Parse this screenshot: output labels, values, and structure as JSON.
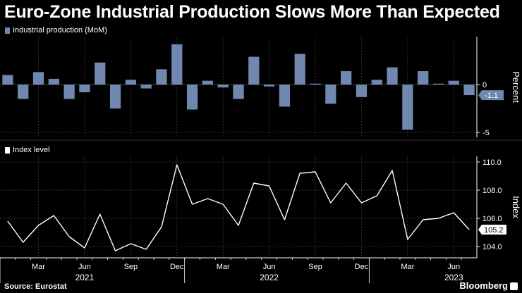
{
  "header": {
    "title": "Euro-Zone Industrial Production Slows More Than Expected"
  },
  "footer": {
    "source": "Source: Eurostat",
    "brand": "Bloomberg"
  },
  "colors": {
    "background": "#000000",
    "bar": "#7088b0",
    "line": "#ffffff",
    "grid": "#555555",
    "badge": "#7088b0"
  },
  "chart_data": [
    {
      "type": "bar",
      "legend": "Industrial production (MoM)",
      "ylabel": "Percent",
      "ylim": [
        -5.5,
        5
      ],
      "yticks": [
        0,
        -5
      ],
      "last_value_label": "-1.1",
      "categories": [
        "Jan 2021",
        "Feb 2021",
        "Mar 2021",
        "Apr 2021",
        "May 2021",
        "Jun 2021",
        "Jul 2021",
        "Aug 2021",
        "Sep 2021",
        "Oct 2021",
        "Nov 2021",
        "Dec 2021",
        "Jan 2022",
        "Feb 2022",
        "Mar 2022",
        "Apr 2022",
        "May 2022",
        "Jun 2022",
        "Jul 2022",
        "Aug 2022",
        "Sep 2022",
        "Oct 2022",
        "Nov 2022",
        "Dec 2022",
        "Jan 2023",
        "Feb 2023",
        "Mar 2023",
        "Apr 2023",
        "May 2023",
        "Jun 2023",
        "Jul 2023"
      ],
      "values": [
        1.0,
        -1.5,
        1.3,
        0.6,
        -1.5,
        -0.8,
        2.3,
        -2.5,
        0.5,
        -0.4,
        1.6,
        4.2,
        -2.6,
        0.4,
        -0.3,
        -1.5,
        2.9,
        -0.2,
        -2.3,
        3.2,
        0.1,
        -2.0,
        1.4,
        -1.3,
        0.5,
        1.8,
        -4.7,
        1.4,
        0.1,
        0.4,
        -1.1
      ]
    },
    {
      "type": "line",
      "legend": "Index level",
      "ylabel": "Index",
      "ylim": [
        103.2,
        110.4
      ],
      "yticks": [
        104.0,
        106.0,
        108.0,
        110.0
      ],
      "ytick_labels": [
        "104.0",
        "106.0",
        "108.0",
        "110.0"
      ],
      "last_value_label": "105.2",
      "values": [
        105.8,
        104.3,
        105.5,
        106.2,
        104.7,
        103.9,
        106.3,
        103.7,
        104.2,
        103.8,
        105.4,
        109.8,
        107.0,
        107.4,
        107.0,
        105.5,
        108.5,
        108.3,
        105.9,
        109.2,
        109.3,
        107.1,
        108.5,
        107.1,
        107.6,
        109.4,
        104.5,
        105.9,
        106.0,
        106.4,
        105.2
      ]
    }
  ],
  "x_axis": {
    "month_labels": [
      {
        "label": "Mar",
        "index": 2
      },
      {
        "label": "Jun",
        "index": 5
      },
      {
        "label": "Sep",
        "index": 8
      },
      {
        "label": "Dec",
        "index": 11
      },
      {
        "label": "Mar",
        "index": 14
      },
      {
        "label": "Jun",
        "index": 17
      },
      {
        "label": "Sep",
        "index": 20
      },
      {
        "label": "Dec",
        "index": 23
      },
      {
        "label": "Mar",
        "index": 26
      },
      {
        "label": "Jun",
        "index": 29
      }
    ],
    "year_labels": [
      {
        "label": "2021",
        "index": 5
      },
      {
        "label": "2022",
        "index": 17
      },
      {
        "label": "2023",
        "index": 29
      }
    ]
  }
}
